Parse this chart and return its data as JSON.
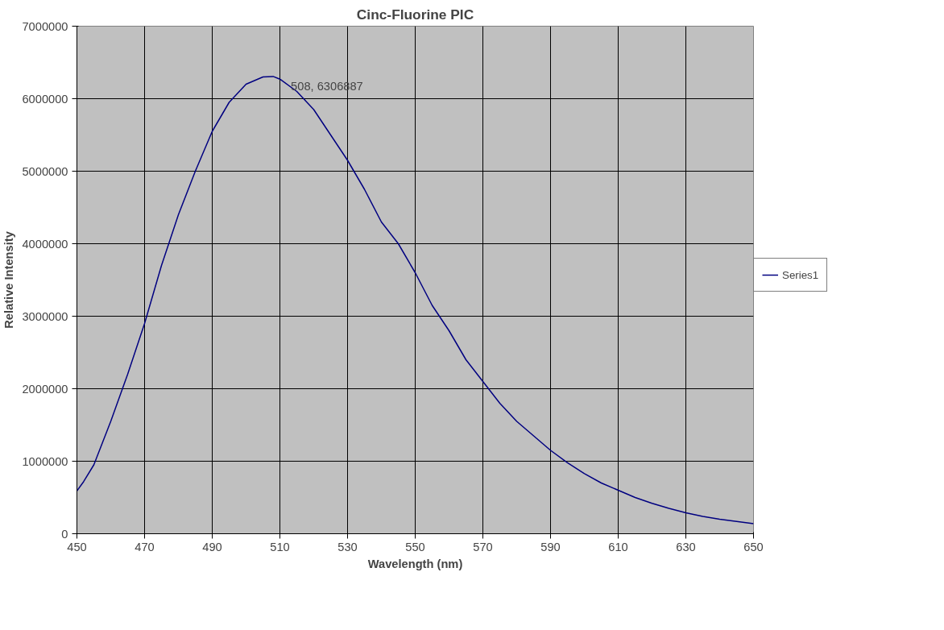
{
  "chart_data": {
    "type": "line",
    "title": "Cinc-Fluorine PIC",
    "xlabel": "Wavelength (nm)",
    "ylabel": "Relative Intensity",
    "xlim": [
      450,
      650
    ],
    "xticks": [
      450,
      470,
      490,
      510,
      530,
      550,
      570,
      590,
      610,
      630,
      650
    ],
    "ylim": [
      0,
      7000000
    ],
    "yticks": [
      0,
      1000000,
      2000000,
      3000000,
      4000000,
      5000000,
      6000000,
      7000000
    ],
    "grid": true,
    "legend": "right",
    "marker": "none",
    "line_style": "solid",
    "annotations": [
      {
        "text": "508, 6306887",
        "x": 508,
        "y": 6306887
      }
    ],
    "series": [
      {
        "name": "Series1",
        "color": "#000080",
        "x": [
          450,
          452,
          455,
          460,
          465,
          470,
          475,
          480,
          485,
          490,
          495,
          500,
          505,
          508,
          510,
          515,
          520,
          525,
          530,
          535,
          540,
          545,
          550,
          555,
          560,
          565,
          570,
          575,
          580,
          585,
          590,
          595,
          600,
          605,
          610,
          615,
          620,
          625,
          630,
          635,
          640,
          645,
          650
        ],
        "values": [
          590000,
          720000,
          950000,
          1550000,
          2200000,
          2900000,
          3700000,
          4400000,
          5000000,
          5550000,
          5950000,
          6200000,
          6300000,
          6306887,
          6270000,
          6100000,
          5850000,
          5500000,
          5150000,
          4750000,
          4300000,
          4000000,
          3600000,
          3150000,
          2800000,
          2400000,
          2100000,
          1800000,
          1550000,
          1350000,
          1150000,
          980000,
          830000,
          700000,
          600000,
          500000,
          420000,
          350000,
          290000,
          240000,
          200000,
          170000,
          140000
        ]
      }
    ]
  }
}
